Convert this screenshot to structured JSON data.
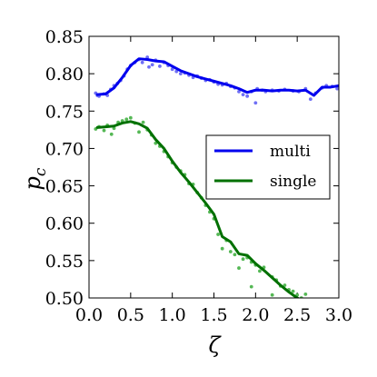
{
  "chart_data": {
    "type": "line",
    "xlabel": "ζ",
    "ylabel_main": "p",
    "ylabel_sub": "c",
    "xlim": [
      0.0,
      3.0
    ],
    "ylim": [
      0.5,
      0.85
    ],
    "xticks": [
      0.0,
      0.5,
      1.0,
      1.5,
      2.0,
      2.5,
      3.0
    ],
    "xtick_labels": [
      "0.0",
      "0.5",
      "1.0",
      "1.5",
      "2.0",
      "2.5",
      "3.0"
    ],
    "yticks": [
      0.5,
      0.55,
      0.6,
      0.65,
      0.7,
      0.75,
      0.8,
      0.85
    ],
    "ytick_labels": [
      "0.50",
      "0.55",
      "0.60",
      "0.65",
      "0.70",
      "0.75",
      "0.80",
      "0.85"
    ],
    "legend_position": "center-right",
    "series": [
      {
        "name": "multi",
        "color": "#0000ee",
        "scatter_color": "#6f6ff5",
        "x": [
          0.1,
          0.2,
          0.3,
          0.4,
          0.5,
          0.6,
          0.7,
          0.8,
          0.9,
          1.0,
          1.1,
          1.2,
          1.3,
          1.4,
          1.5,
          1.6,
          1.7,
          1.8,
          1.9,
          2.0,
          2.1,
          2.2,
          2.3,
          2.4,
          2.5,
          2.6,
          2.7,
          2.8,
          2.9,
          3.0
        ],
        "y": [
          0.772,
          0.773,
          0.781,
          0.795,
          0.811,
          0.82,
          0.819,
          0.817,
          0.816,
          0.81,
          0.804,
          0.8,
          0.796,
          0.793,
          0.79,
          0.787,
          0.784,
          0.78,
          0.775,
          0.778,
          0.778,
          0.777,
          0.778,
          0.778,
          0.777,
          0.778,
          0.771,
          0.782,
          0.782,
          0.784
        ],
        "scatter": [
          [
            0.08,
            0.774
          ],
          [
            0.1,
            0.771
          ],
          [
            0.12,
            0.77
          ],
          [
            0.18,
            0.773
          ],
          [
            0.22,
            0.771
          ],
          [
            0.26,
            0.779
          ],
          [
            0.3,
            0.784
          ],
          [
            0.34,
            0.787
          ],
          [
            0.38,
            0.791
          ],
          [
            0.42,
            0.797
          ],
          [
            0.46,
            0.806
          ],
          [
            0.5,
            0.811
          ],
          [
            0.55,
            0.815
          ],
          [
            0.6,
            0.819
          ],
          [
            0.64,
            0.815
          ],
          [
            0.7,
            0.822
          ],
          [
            0.72,
            0.809
          ],
          [
            0.76,
            0.812
          ],
          [
            0.8,
            0.818
          ],
          [
            0.85,
            0.81
          ],
          [
            0.9,
            0.815
          ],
          [
            0.95,
            0.811
          ],
          [
            1.0,
            0.806
          ],
          [
            1.05,
            0.803
          ],
          [
            1.1,
            0.8
          ],
          [
            1.15,
            0.801
          ],
          [
            1.2,
            0.798
          ],
          [
            1.25,
            0.795
          ],
          [
            1.3,
            0.797
          ],
          [
            1.35,
            0.794
          ],
          [
            1.4,
            0.791
          ],
          [
            1.45,
            0.792
          ],
          [
            1.5,
            0.789
          ],
          [
            1.55,
            0.786
          ],
          [
            1.6,
            0.785
          ],
          [
            1.65,
            0.787
          ],
          [
            1.7,
            0.783
          ],
          [
            1.75,
            0.781
          ],
          [
            1.8,
            0.776
          ],
          [
            1.85,
            0.772
          ],
          [
            1.9,
            0.77
          ],
          [
            1.95,
            0.776
          ],
          [
            2.0,
            0.761
          ],
          [
            2.02,
            0.78
          ],
          [
            2.08,
            0.778
          ],
          [
            2.12,
            0.776
          ],
          [
            2.2,
            0.778
          ],
          [
            2.28,
            0.777
          ],
          [
            2.35,
            0.779
          ],
          [
            2.45,
            0.777
          ],
          [
            2.52,
            0.776
          ],
          [
            2.6,
            0.78
          ],
          [
            2.66,
            0.766
          ],
          [
            2.72,
            0.774
          ],
          [
            2.8,
            0.781
          ],
          [
            2.85,
            0.784
          ],
          [
            2.92,
            0.783
          ],
          [
            2.98,
            0.78
          ]
        ]
      },
      {
        "name": "single",
        "color": "#007000",
        "scatter_color": "#55b855",
        "x": [
          0.1,
          0.2,
          0.3,
          0.4,
          0.5,
          0.6,
          0.7,
          0.8,
          0.9,
          1.0,
          1.1,
          1.2,
          1.3,
          1.4,
          1.5,
          1.6,
          1.7,
          1.8,
          1.9,
          2.0,
          2.1,
          2.2,
          2.3,
          2.4,
          2.5,
          2.6
        ],
        "y": [
          0.728,
          0.729,
          0.73,
          0.734,
          0.736,
          0.733,
          0.727,
          0.712,
          0.7,
          0.683,
          0.668,
          0.655,
          0.641,
          0.627,
          0.612,
          0.582,
          0.575,
          0.559,
          0.557,
          0.546,
          0.537,
          0.527,
          0.517,
          0.508,
          0.5,
          0.494
        ],
        "scatter": [
          [
            0.08,
            0.726
          ],
          [
            0.12,
            0.729
          ],
          [
            0.18,
            0.724
          ],
          [
            0.22,
            0.731
          ],
          [
            0.27,
            0.719
          ],
          [
            0.3,
            0.727
          ],
          [
            0.35,
            0.735
          ],
          [
            0.4,
            0.737
          ],
          [
            0.45,
            0.739
          ],
          [
            0.5,
            0.741
          ],
          [
            0.55,
            0.734
          ],
          [
            0.6,
            0.722
          ],
          [
            0.65,
            0.735
          ],
          [
            0.7,
            0.725
          ],
          [
            0.75,
            0.718
          ],
          [
            0.8,
            0.707
          ],
          [
            0.85,
            0.703
          ],
          [
            0.9,
            0.696
          ],
          [
            0.95,
            0.689
          ],
          [
            1.0,
            0.681
          ],
          [
            1.05,
            0.675
          ],
          [
            1.1,
            0.67
          ],
          [
            1.15,
            0.665
          ],
          [
            1.2,
            0.653
          ],
          [
            1.25,
            0.652
          ],
          [
            1.3,
            0.641
          ],
          [
            1.35,
            0.634
          ],
          [
            1.4,
            0.624
          ],
          [
            1.45,
            0.615
          ],
          [
            1.5,
            0.606
          ],
          [
            1.55,
            0.585
          ],
          [
            1.6,
            0.566
          ],
          [
            1.65,
            0.577
          ],
          [
            1.7,
            0.562
          ],
          [
            1.75,
            0.558
          ],
          [
            1.8,
            0.54
          ],
          [
            1.85,
            0.552
          ],
          [
            1.9,
            0.554
          ],
          [
            1.95,
            0.548
          ],
          [
            2.0,
            0.544
          ],
          [
            2.05,
            0.536
          ],
          [
            2.1,
            0.541
          ],
          [
            2.2,
            0.528
          ],
          [
            2.25,
            0.524
          ],
          [
            2.3,
            0.516
          ],
          [
            2.35,
            0.517
          ],
          [
            2.4,
            0.511
          ],
          [
            2.45,
            0.509
          ],
          [
            2.5,
            0.504
          ],
          [
            2.55,
            0.5
          ],
          [
            2.6,
            0.505
          ],
          [
            2.2,
            0.504
          ],
          [
            1.95,
            0.515
          ]
        ]
      }
    ]
  }
}
